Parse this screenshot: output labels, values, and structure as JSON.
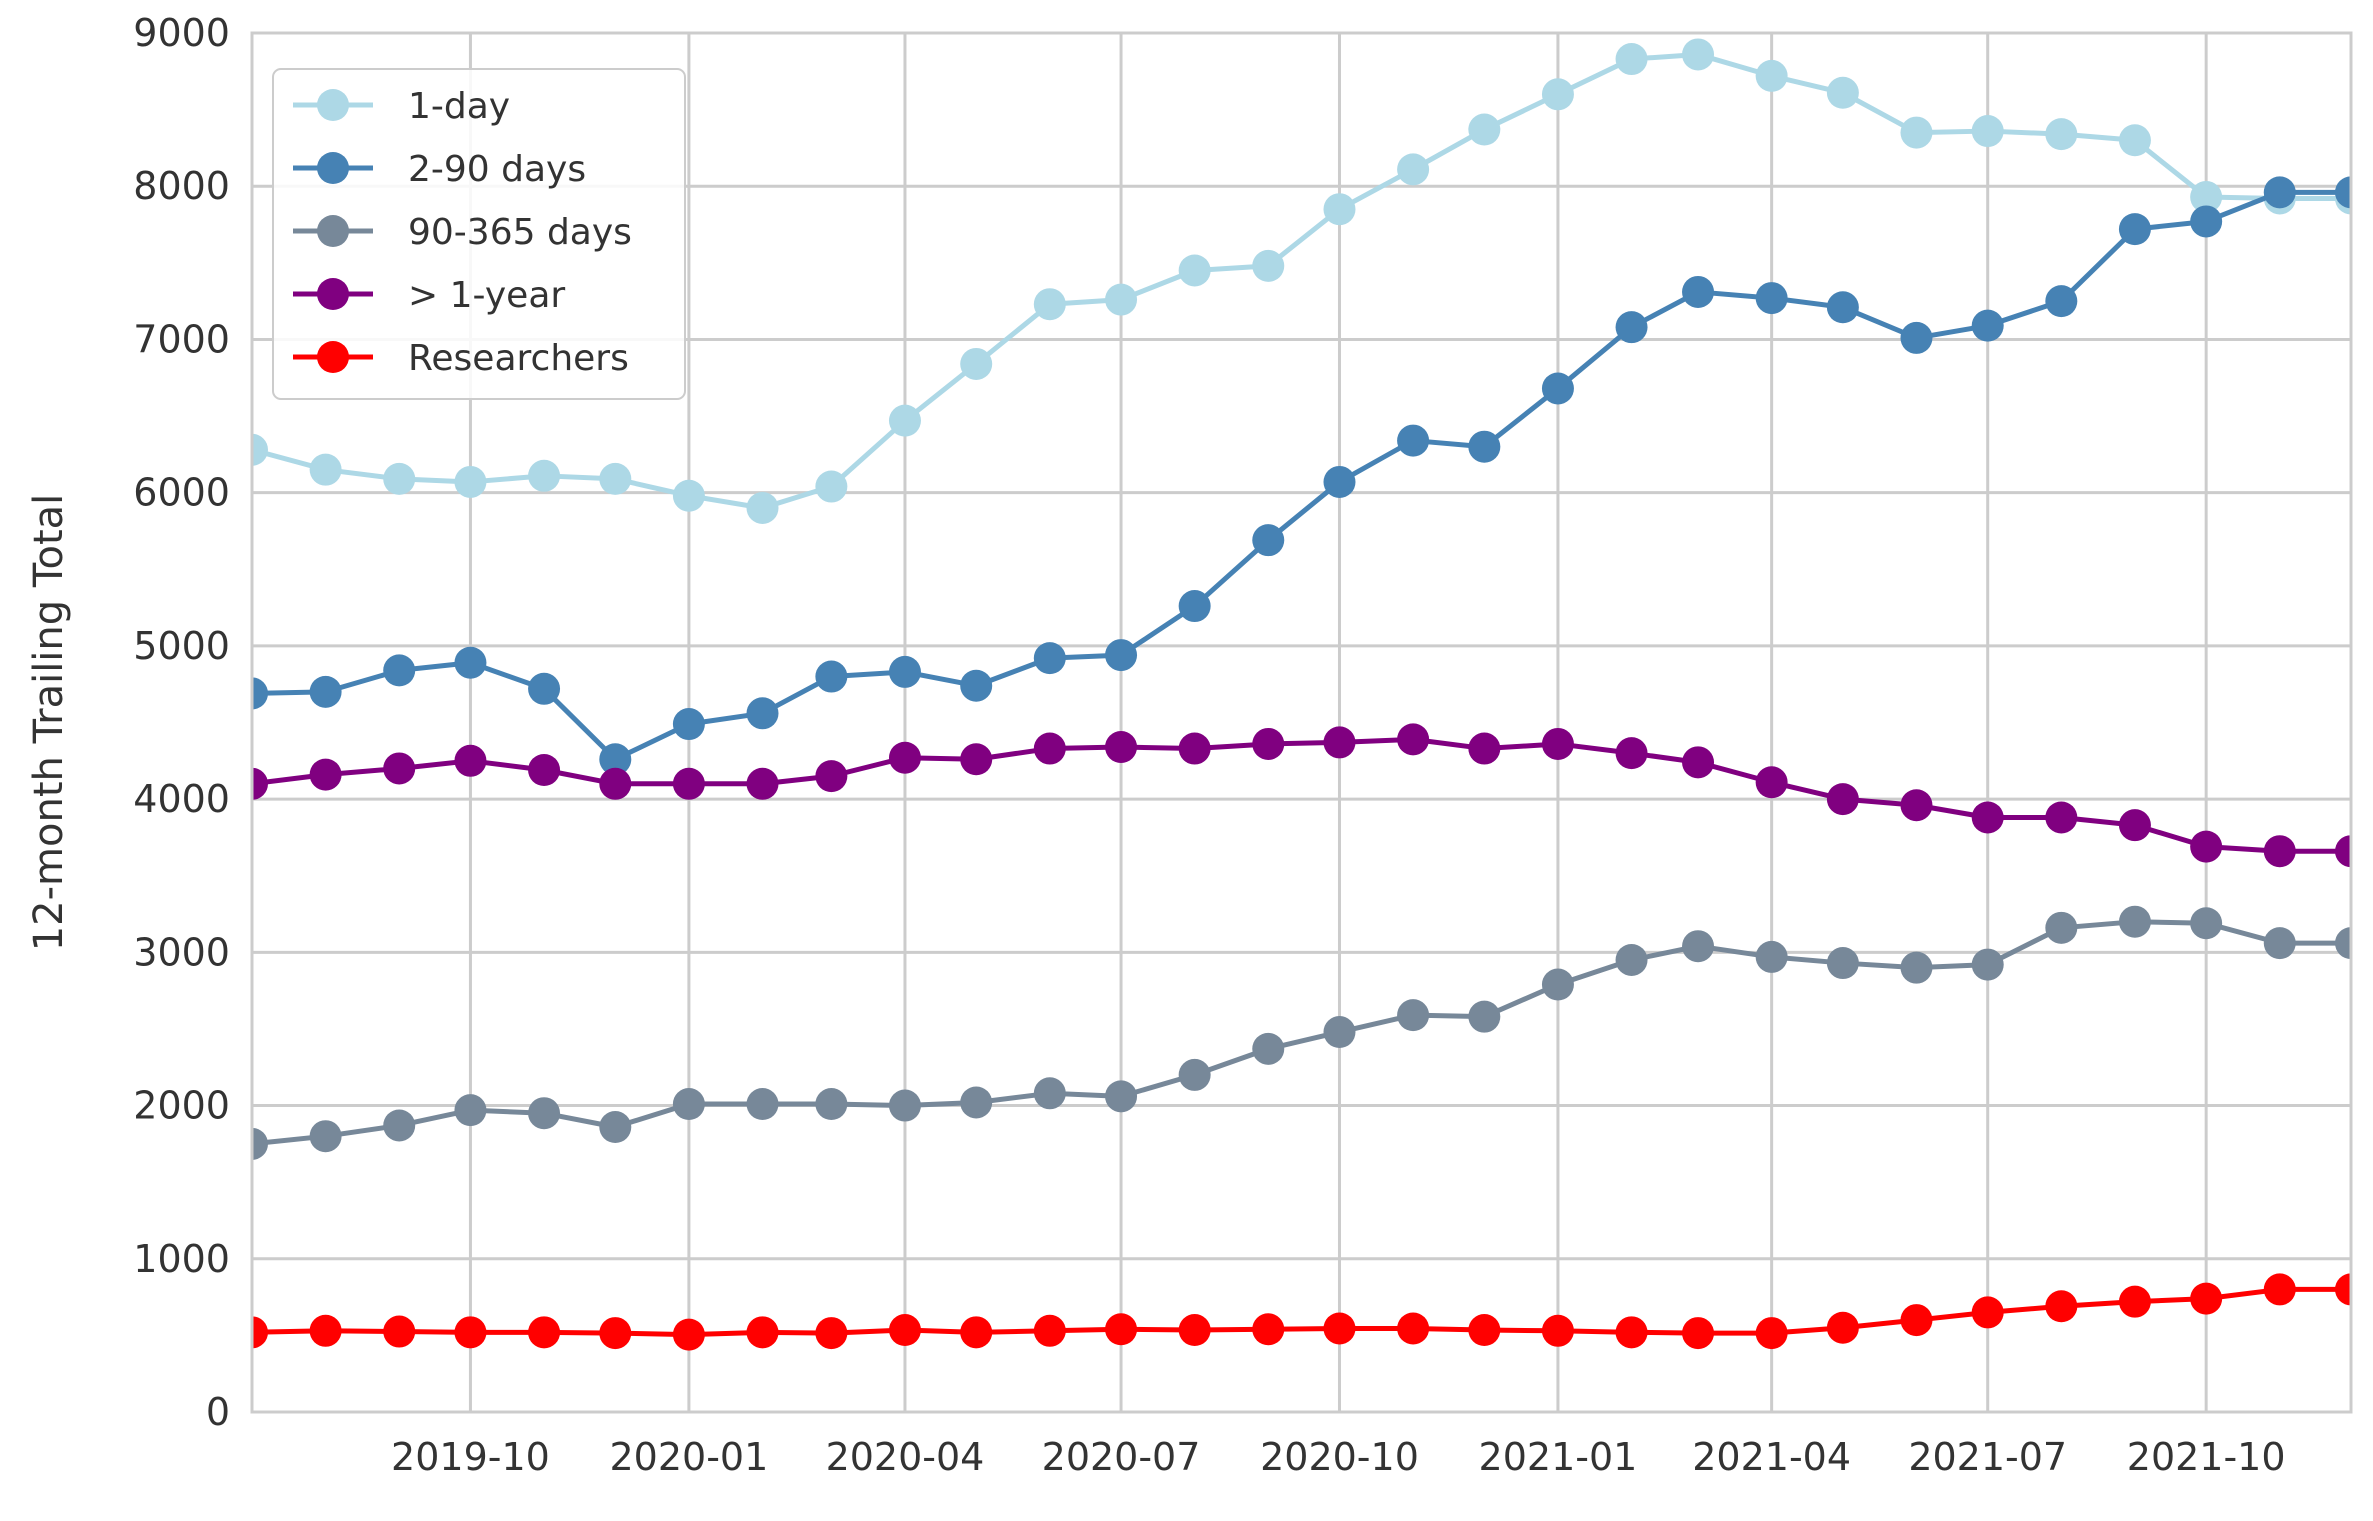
{
  "chart_data": {
    "type": "line",
    "title": "",
    "xlabel": "",
    "ylabel": "12-month Trailing Total",
    "ylim": [
      0,
      9000
    ],
    "xlim": [
      "2019-07-01",
      "2021-12-01"
    ],
    "grid": true,
    "legend_position": "top-left",
    "x": [
      "2019-07",
      "2019-08",
      "2019-09",
      "2019-10",
      "2019-11",
      "2019-12",
      "2020-01",
      "2020-02",
      "2020-03",
      "2020-04",
      "2020-05",
      "2020-06",
      "2020-07",
      "2020-08",
      "2020-09",
      "2020-10",
      "2020-11",
      "2020-12",
      "2021-01",
      "2021-02",
      "2021-03",
      "2021-04",
      "2021-05",
      "2021-06",
      "2021-07",
      "2021-08",
      "2021-09",
      "2021-10",
      "2021-11",
      "2021-12"
    ],
    "x_tick_labels": [
      "2019-10",
      "2020-01",
      "2020-04",
      "2020-07",
      "2020-10",
      "2021-01",
      "2021-04",
      "2021-07",
      "2021-10"
    ],
    "y_ticks": [
      0,
      1000,
      2000,
      3000,
      4000,
      5000,
      6000,
      7000,
      8000,
      9000
    ],
    "series": [
      {
        "name": "1-day",
        "color": "#add8e6",
        "values": [
          6280,
          6150,
          6090,
          6070,
          6110,
          6090,
          5980,
          5900,
          6040,
          6470,
          6840,
          7230,
          7260,
          7450,
          7480,
          7850,
          8110,
          8370,
          8600,
          8830,
          8860,
          8720,
          8610,
          8350,
          8360,
          8340,
          8300,
          7930,
          7920,
          7920
        ]
      },
      {
        "name": "2-90 days",
        "color": "#4682b4",
        "values": [
          4690,
          4700,
          4840,
          4890,
          4720,
          4260,
          4490,
          4560,
          4800,
          4830,
          4740,
          4920,
          4940,
          5260,
          5690,
          6070,
          6340,
          6300,
          6680,
          7080,
          7310,
          7270,
          7210,
          7010,
          7090,
          7250,
          7720,
          7770,
          7960,
          7960
        ]
      },
      {
        "name": "90-365 days",
        "color": "#778899",
        "values": [
          1750,
          1800,
          1870,
          1970,
          1950,
          1860,
          2010,
          2010,
          2010,
          2000,
          2020,
          2080,
          2060,
          2200,
          2370,
          2480,
          2590,
          2580,
          2790,
          2950,
          3040,
          2970,
          2930,
          2900,
          2920,
          3160,
          3200,
          3190,
          3060,
          3060
        ]
      },
      {
        "name": "> 1-year",
        "color": "#800080",
        "values": [
          4100,
          4160,
          4200,
          4250,
          4190,
          4100,
          4100,
          4100,
          4150,
          4270,
          4260,
          4330,
          4340,
          4330,
          4360,
          4370,
          4390,
          4330,
          4360,
          4300,
          4240,
          4110,
          4000,
          3960,
          3880,
          3880,
          3830,
          3690,
          3660,
          3660
        ]
      },
      {
        "name": "Researchers",
        "color": "#ff0000",
        "values": [
          520,
          530,
          525,
          520,
          520,
          515,
          505,
          520,
          515,
          535,
          520,
          530,
          540,
          535,
          540,
          545,
          545,
          535,
          530,
          520,
          515,
          515,
          550,
          600,
          650,
          690,
          720,
          740,
          800,
          800
        ]
      }
    ]
  }
}
